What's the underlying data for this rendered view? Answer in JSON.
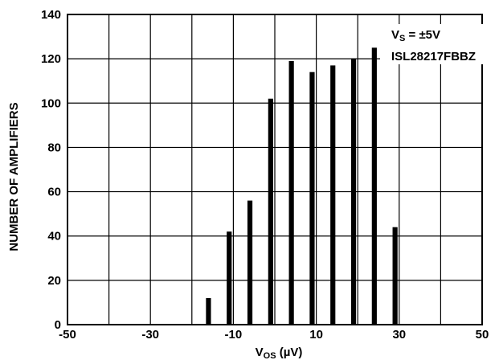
{
  "chart_data": {
    "type": "bar",
    "x": [
      -16,
      -11,
      -6,
      -1,
      4,
      9,
      14,
      19,
      24,
      29
    ],
    "values": [
      12,
      42,
      56,
      102,
      119,
      114,
      117,
      120,
      125,
      44
    ],
    "xlim": [
      -50,
      50
    ],
    "ylim": [
      0,
      140
    ],
    "x_ticks": [
      -50,
      -30,
      -10,
      10,
      30,
      50
    ],
    "x_tick_labels": [
      "-50",
      "-30",
      "-10",
      "10",
      "30",
      "50"
    ],
    "y_ticks": [
      0,
      20,
      40,
      60,
      80,
      100,
      120,
      140
    ],
    "y_tick_labels": [
      "0",
      "20",
      "40",
      "60",
      "80",
      "100",
      "120",
      "140"
    ],
    "x_grid_step": 10,
    "grid": true,
    "bar_color": "#000000",
    "xlabel": {
      "main": "V",
      "sub": "OS",
      "rest": " (µV)"
    },
    "ylabel": "NUMBER OF AMPLIFIERS",
    "annotations": {
      "line1": {
        "main": "V",
        "sub": "S",
        "rest": " = ±5V"
      },
      "line2": "ISL28217FBBZ"
    }
  }
}
